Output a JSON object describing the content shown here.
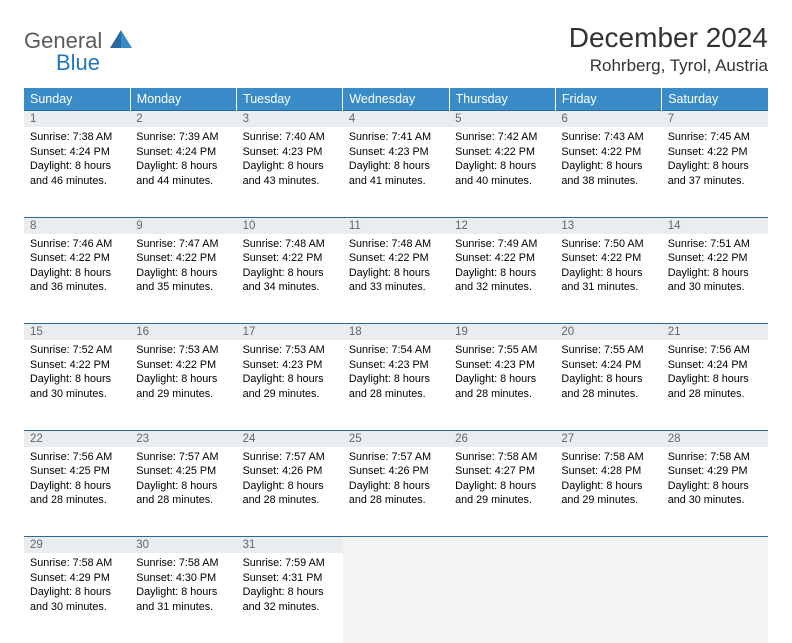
{
  "brand": {
    "word1": "General",
    "word2": "Blue"
  },
  "title": "December 2024",
  "subtitle": "Rohrberg, Tyrol, Austria",
  "colors": {
    "header_bg": "#3a8cc9",
    "header_text": "#ffffff",
    "daynum_bg": "#e9edef",
    "daynum_text": "#5a6a72",
    "border_top": "#2a6a9a",
    "brand_gray": "#5a5a5a",
    "brand_blue": "#2176bd",
    "body_text": "#000000",
    "page_bg": "#ffffff"
  },
  "fonts": {
    "title_size": 28,
    "subtitle_size": 17,
    "header_size": 12.5,
    "daynum_size": 11.5,
    "cell_size": 10.8
  },
  "weekdays": [
    "Sunday",
    "Monday",
    "Tuesday",
    "Wednesday",
    "Thursday",
    "Friday",
    "Saturday"
  ],
  "weeks": [
    [
      {
        "num": "1",
        "sunrise": "Sunrise: 7:38 AM",
        "sunset": "Sunset: 4:24 PM",
        "day1": "Daylight: 8 hours",
        "day2": "and 46 minutes."
      },
      {
        "num": "2",
        "sunrise": "Sunrise: 7:39 AM",
        "sunset": "Sunset: 4:24 PM",
        "day1": "Daylight: 8 hours",
        "day2": "and 44 minutes."
      },
      {
        "num": "3",
        "sunrise": "Sunrise: 7:40 AM",
        "sunset": "Sunset: 4:23 PM",
        "day1": "Daylight: 8 hours",
        "day2": "and 43 minutes."
      },
      {
        "num": "4",
        "sunrise": "Sunrise: 7:41 AM",
        "sunset": "Sunset: 4:23 PM",
        "day1": "Daylight: 8 hours",
        "day2": "and 41 minutes."
      },
      {
        "num": "5",
        "sunrise": "Sunrise: 7:42 AM",
        "sunset": "Sunset: 4:22 PM",
        "day1": "Daylight: 8 hours",
        "day2": "and 40 minutes."
      },
      {
        "num": "6",
        "sunrise": "Sunrise: 7:43 AM",
        "sunset": "Sunset: 4:22 PM",
        "day1": "Daylight: 8 hours",
        "day2": "and 38 minutes."
      },
      {
        "num": "7",
        "sunrise": "Sunrise: 7:45 AM",
        "sunset": "Sunset: 4:22 PM",
        "day1": "Daylight: 8 hours",
        "day2": "and 37 minutes."
      }
    ],
    [
      {
        "num": "8",
        "sunrise": "Sunrise: 7:46 AM",
        "sunset": "Sunset: 4:22 PM",
        "day1": "Daylight: 8 hours",
        "day2": "and 36 minutes."
      },
      {
        "num": "9",
        "sunrise": "Sunrise: 7:47 AM",
        "sunset": "Sunset: 4:22 PM",
        "day1": "Daylight: 8 hours",
        "day2": "and 35 minutes."
      },
      {
        "num": "10",
        "sunrise": "Sunrise: 7:48 AM",
        "sunset": "Sunset: 4:22 PM",
        "day1": "Daylight: 8 hours",
        "day2": "and 34 minutes."
      },
      {
        "num": "11",
        "sunrise": "Sunrise: 7:48 AM",
        "sunset": "Sunset: 4:22 PM",
        "day1": "Daylight: 8 hours",
        "day2": "and 33 minutes."
      },
      {
        "num": "12",
        "sunrise": "Sunrise: 7:49 AM",
        "sunset": "Sunset: 4:22 PM",
        "day1": "Daylight: 8 hours",
        "day2": "and 32 minutes."
      },
      {
        "num": "13",
        "sunrise": "Sunrise: 7:50 AM",
        "sunset": "Sunset: 4:22 PM",
        "day1": "Daylight: 8 hours",
        "day2": "and 31 minutes."
      },
      {
        "num": "14",
        "sunrise": "Sunrise: 7:51 AM",
        "sunset": "Sunset: 4:22 PM",
        "day1": "Daylight: 8 hours",
        "day2": "and 30 minutes."
      }
    ],
    [
      {
        "num": "15",
        "sunrise": "Sunrise: 7:52 AM",
        "sunset": "Sunset: 4:22 PM",
        "day1": "Daylight: 8 hours",
        "day2": "and 30 minutes."
      },
      {
        "num": "16",
        "sunrise": "Sunrise: 7:53 AM",
        "sunset": "Sunset: 4:22 PM",
        "day1": "Daylight: 8 hours",
        "day2": "and 29 minutes."
      },
      {
        "num": "17",
        "sunrise": "Sunrise: 7:53 AM",
        "sunset": "Sunset: 4:23 PM",
        "day1": "Daylight: 8 hours",
        "day2": "and 29 minutes."
      },
      {
        "num": "18",
        "sunrise": "Sunrise: 7:54 AM",
        "sunset": "Sunset: 4:23 PM",
        "day1": "Daylight: 8 hours",
        "day2": "and 28 minutes."
      },
      {
        "num": "19",
        "sunrise": "Sunrise: 7:55 AM",
        "sunset": "Sunset: 4:23 PM",
        "day1": "Daylight: 8 hours",
        "day2": "and 28 minutes."
      },
      {
        "num": "20",
        "sunrise": "Sunrise: 7:55 AM",
        "sunset": "Sunset: 4:24 PM",
        "day1": "Daylight: 8 hours",
        "day2": "and 28 minutes."
      },
      {
        "num": "21",
        "sunrise": "Sunrise: 7:56 AM",
        "sunset": "Sunset: 4:24 PM",
        "day1": "Daylight: 8 hours",
        "day2": "and 28 minutes."
      }
    ],
    [
      {
        "num": "22",
        "sunrise": "Sunrise: 7:56 AM",
        "sunset": "Sunset: 4:25 PM",
        "day1": "Daylight: 8 hours",
        "day2": "and 28 minutes."
      },
      {
        "num": "23",
        "sunrise": "Sunrise: 7:57 AM",
        "sunset": "Sunset: 4:25 PM",
        "day1": "Daylight: 8 hours",
        "day2": "and 28 minutes."
      },
      {
        "num": "24",
        "sunrise": "Sunrise: 7:57 AM",
        "sunset": "Sunset: 4:26 PM",
        "day1": "Daylight: 8 hours",
        "day2": "and 28 minutes."
      },
      {
        "num": "25",
        "sunrise": "Sunrise: 7:57 AM",
        "sunset": "Sunset: 4:26 PM",
        "day1": "Daylight: 8 hours",
        "day2": "and 28 minutes."
      },
      {
        "num": "26",
        "sunrise": "Sunrise: 7:58 AM",
        "sunset": "Sunset: 4:27 PM",
        "day1": "Daylight: 8 hours",
        "day2": "and 29 minutes."
      },
      {
        "num": "27",
        "sunrise": "Sunrise: 7:58 AM",
        "sunset": "Sunset: 4:28 PM",
        "day1": "Daylight: 8 hours",
        "day2": "and 29 minutes."
      },
      {
        "num": "28",
        "sunrise": "Sunrise: 7:58 AM",
        "sunset": "Sunset: 4:29 PM",
        "day1": "Daylight: 8 hours",
        "day2": "and 30 minutes."
      }
    ],
    [
      {
        "num": "29",
        "sunrise": "Sunrise: 7:58 AM",
        "sunset": "Sunset: 4:29 PM",
        "day1": "Daylight: 8 hours",
        "day2": "and 30 minutes."
      },
      {
        "num": "30",
        "sunrise": "Sunrise: 7:58 AM",
        "sunset": "Sunset: 4:30 PM",
        "day1": "Daylight: 8 hours",
        "day2": "and 31 minutes."
      },
      {
        "num": "31",
        "sunrise": "Sunrise: 7:59 AM",
        "sunset": "Sunset: 4:31 PM",
        "day1": "Daylight: 8 hours",
        "day2": "and 32 minutes."
      },
      null,
      null,
      null,
      null
    ]
  ]
}
